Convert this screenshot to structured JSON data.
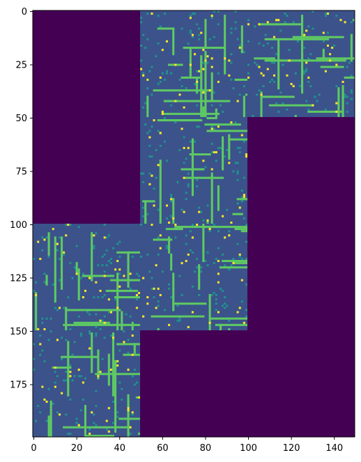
{
  "chart_data": {
    "type": "heatmap",
    "title": "",
    "xlabel": "",
    "ylabel": "",
    "xlim": [
      -0.5,
      149.5
    ],
    "ylim": [
      199.5,
      -0.5
    ],
    "x_ticks": [
      0,
      20,
      40,
      60,
      80,
      100,
      120,
      140
    ],
    "y_ticks": [
      0,
      25,
      50,
      75,
      100,
      125,
      150,
      175
    ],
    "grid": false,
    "colormap": "viridis",
    "value_range": [
      0,
      3
    ],
    "colors": {
      "empty": "#440154",
      "floor": "#3b528b",
      "speck": "#21918c",
      "corridor": "#5ec962",
      "node": "#fde725"
    },
    "filled_blocks": [
      {
        "x_range": [
          0,
          49
        ],
        "y_range": [
          100,
          149
        ]
      },
      {
        "x_range": [
          0,
          49
        ],
        "y_range": [
          150,
          199
        ]
      },
      {
        "x_range": [
          50,
          99
        ],
        "y_range": [
          0,
          49
        ]
      },
      {
        "x_range": [
          50,
          99
        ],
        "y_range": [
          50,
          99
        ]
      },
      {
        "x_range": [
          50,
          99
        ],
        "y_range": [
          100,
          149
        ]
      },
      {
        "x_range": [
          100,
          149
        ],
        "y_range": [
          0,
          49
        ]
      }
    ]
  }
}
